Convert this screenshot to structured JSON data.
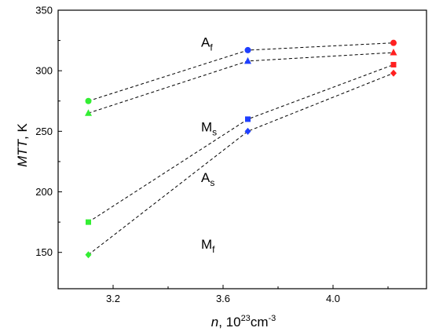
{
  "chart_data": {
    "type": "scatter",
    "xlabel": {
      "symbol": "n",
      "rest": ", 10",
      "sup1": "23",
      "unit": "cm",
      "sup2": "-3"
    },
    "ylabel": {
      "symbol": "MTT",
      "rest": ", K"
    },
    "xlim": [
      3.0,
      4.34
    ],
    "ylim": [
      120,
      350
    ],
    "xticks": [
      "3.2",
      "3.6",
      "4.0"
    ],
    "xtick_values": [
      3.2,
      3.6,
      4.0
    ],
    "yticks": [
      "150",
      "200",
      "250",
      "300",
      "350"
    ],
    "ytick_values": [
      150,
      200,
      250,
      300,
      350
    ],
    "grid": false,
    "line_style": "dashed",
    "point_colors": [
      "#33ee33",
      "#1f3fff",
      "#ff2020"
    ],
    "x": [
      3.11,
      3.69,
      4.22
    ],
    "series": [
      {
        "label_main": "A",
        "label_sub": "f",
        "marker": "circle",
        "values": [
          275,
          317,
          323
        ],
        "label_at": [
          3.52,
          320
        ]
      },
      {
        "label_main": "M",
        "label_sub": "s",
        "marker": "triangle",
        "values": [
          265,
          308,
          315
        ],
        "label_at": [
          3.52,
          250
        ]
      },
      {
        "label_main": "A",
        "label_sub": "s",
        "marker": "square",
        "values": [
          175,
          260,
          305
        ],
        "label_at": [
          3.52,
          208
        ]
      },
      {
        "label_main": "M",
        "label_sub": "f",
        "marker": "diamond",
        "values": [
          148,
          250,
          298
        ],
        "label_at": [
          3.52,
          153
        ]
      }
    ]
  }
}
